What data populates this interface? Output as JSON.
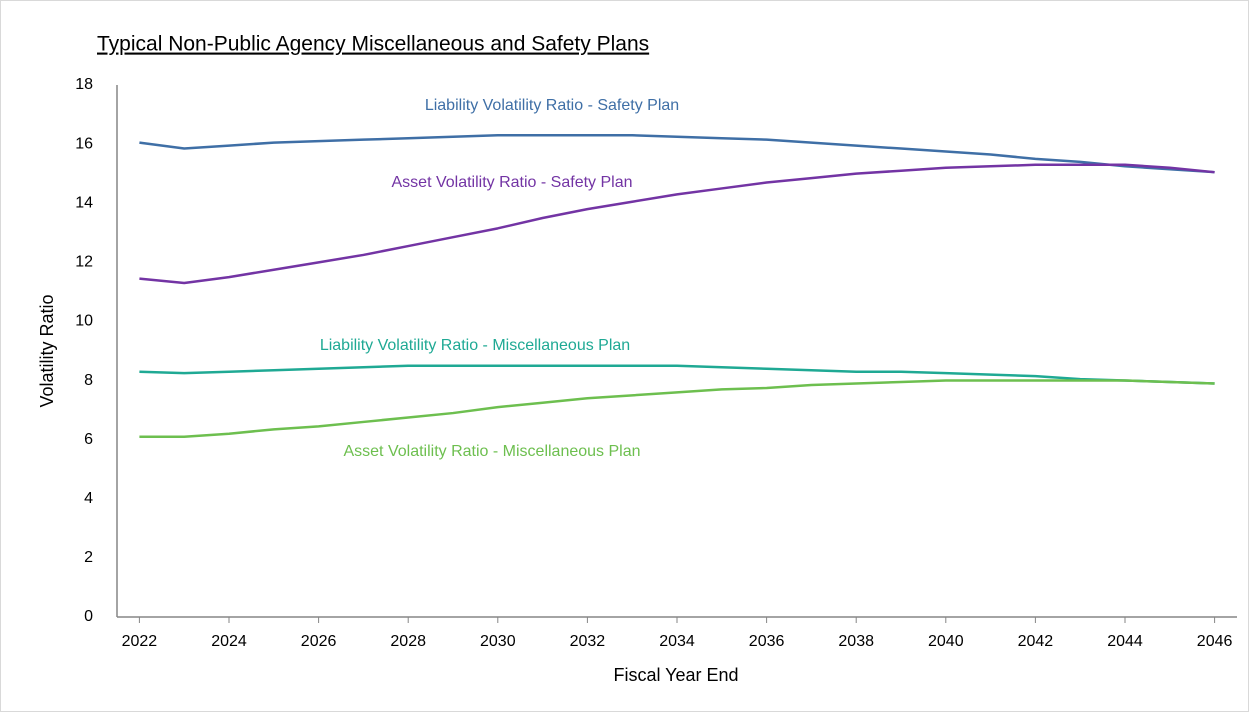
{
  "chart_data": {
    "type": "line",
    "title": "Typical Non-Public Agency Miscellaneous and Safety Plans",
    "x_label": "Fiscal Year End",
    "y_label": "Volatility Ratio",
    "x": [
      2022,
      2023,
      2024,
      2025,
      2026,
      2027,
      2028,
      2029,
      2030,
      2031,
      2032,
      2033,
      2034,
      2035,
      2036,
      2037,
      2038,
      2039,
      2040,
      2041,
      2042,
      2043,
      2044,
      2045,
      2046
    ],
    "series": [
      {
        "name": "Liability Volatility Ratio - Safety Plan",
        "color": "#3f6fa6",
        "values": [
          16.05,
          15.85,
          15.95,
          16.05,
          16.1,
          16.15,
          16.2,
          16.25,
          16.3,
          16.3,
          16.3,
          16.3,
          16.25,
          16.2,
          16.15,
          16.05,
          15.95,
          15.85,
          15.75,
          15.65,
          15.5,
          15.4,
          15.25,
          15.15,
          15.05
        ]
      },
      {
        "name": "Asset Volatility Ratio - Safety Plan",
        "color": "#7334a4",
        "values": [
          11.45,
          11.3,
          11.5,
          11.75,
          12.0,
          12.25,
          12.55,
          12.85,
          13.15,
          13.5,
          13.8,
          14.05,
          14.3,
          14.5,
          14.7,
          14.85,
          15.0,
          15.1,
          15.2,
          15.25,
          15.3,
          15.3,
          15.3,
          15.2,
          15.05
        ]
      },
      {
        "name": "Liability Volatility Ratio - Miscellaneous Plan",
        "color": "#1fa994",
        "values": [
          8.3,
          8.25,
          8.3,
          8.35,
          8.4,
          8.45,
          8.5,
          8.5,
          8.5,
          8.5,
          8.5,
          8.5,
          8.5,
          8.45,
          8.4,
          8.35,
          8.3,
          8.3,
          8.25,
          8.2,
          8.15,
          8.05,
          8.0,
          7.95,
          7.9
        ]
      },
      {
        "name": "Asset Volatility Ratio - Miscellaneous Plan",
        "color": "#6dbf4f",
        "values": [
          6.1,
          6.1,
          6.2,
          6.35,
          6.45,
          6.6,
          6.75,
          6.9,
          7.1,
          7.25,
          7.4,
          7.5,
          7.6,
          7.7,
          7.75,
          7.85,
          7.9,
          7.95,
          8.0,
          8.0,
          8.0,
          8.0,
          8.0,
          7.95,
          7.9
        ]
      }
    ],
    "xlim": [
      2021.5,
      2046.5
    ],
    "xticks": [
      2022,
      2024,
      2026,
      2028,
      2030,
      2032,
      2034,
      2036,
      2038,
      2040,
      2042,
      2044,
      2046
    ],
    "ylim": [
      0,
      18
    ],
    "yticks": [
      0,
      2,
      4,
      6,
      8,
      10,
      12,
      14,
      16,
      18
    ],
    "grid": false
  }
}
